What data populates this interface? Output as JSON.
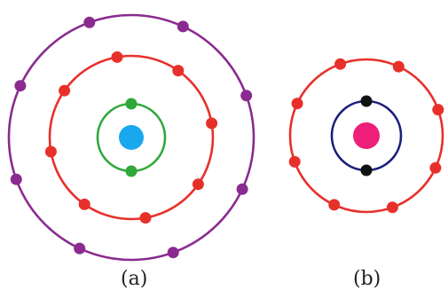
{
  "colors": {
    "outer_shell": "#8a2b8f",
    "middle_shell": "#e8302a",
    "inner_shell_a": "#2fa83a",
    "inner_shell_b": "#1c1f7a",
    "nucleus_a": "#19a7ee",
    "nucleus_b": "#ee1f79",
    "electron_outer": "#8a2b8f",
    "electron_middle": "#e8302a",
    "electron_inner_a": "#2fa83a",
    "electron_inner_b": "#111111"
  },
  "atom_a": {
    "caption": "(a)",
    "shells": [
      {
        "electrons": 2,
        "color_key": "inner_shell_a",
        "electron_color_key": "electron_inner_a"
      },
      {
        "electrons": 8,
        "color_key": "middle_shell",
        "electron_color_key": "electron_middle"
      },
      {
        "electrons": 8,
        "color_key": "outer_shell",
        "electron_color_key": "electron_outer"
      }
    ],
    "nucleus_color_key": "nucleus_a"
  },
  "atom_b": {
    "caption": "(b)",
    "shells": [
      {
        "electrons": 2,
        "color_key": "inner_shell_b",
        "electron_color_key": "electron_inner_b"
      },
      {
        "electrons": 8,
        "color_key": "middle_shell",
        "electron_color_key": "electron_middle"
      }
    ],
    "nucleus_color_key": "nucleus_b"
  }
}
